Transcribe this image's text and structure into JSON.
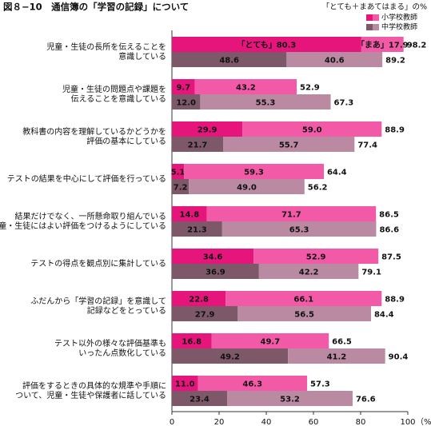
{
  "chart_data": {
    "type": "grouped-stacked-barh",
    "title": "図８−10　通信簿の「学習の記録」について",
    "note": "「とても＋まあてはまる」の%",
    "categories": [
      [
        "児童・生徒の長所を伝えることを",
        "意識している"
      ],
      [
        "児童・生徒の問題点や課題を",
        "伝えることを意識している"
      ],
      [
        "教科書の内容を理解しているかどうかを",
        "評価の基本にしている"
      ],
      [
        "テストの結果を中心にして評価を行っている"
      ],
      [
        "結果だけでなく、一所懸命取り組んでいる",
        "児童・生徒にはよい評価をつけるようにしている"
      ],
      [
        "テストの得点を観点別に集計している"
      ],
      [
        "ふだんから「学習の記録」を意識して",
        "記録などをとっている"
      ],
      [
        "テスト以外の様々な評価基準も",
        "いったん点数化している"
      ],
      [
        "評価をするときの具体的な規準や手順に",
        "ついて、児童・生徒や保護者に話している"
      ]
    ],
    "groups": [
      {
        "name": "小学校教師",
        "colors": [
          "#e5157c",
          "#f25aa8"
        ],
        "segments": [
          {
            "values": [
              80.3,
              9.7,
              29.9,
              5.1,
              14.8,
              34.6,
              22.8,
              16.8,
              11.0
            ],
            "value_labels": [
              "「とても」80.3",
              "9.7",
              "29.9",
              "5.1",
              "14.8",
              "34.6",
              "22.8",
              "16.8",
              "11.0"
            ]
          },
          {
            "values": [
              17.9,
              43.2,
              59.0,
              59.3,
              71.7,
              52.9,
              66.1,
              49.7,
              46.3
            ],
            "value_labels": [
              "「まあ」17.9",
              "43.2",
              "59.0",
              "59.3",
              "71.7",
              "52.9",
              "66.1",
              "49.7",
              "46.3"
            ]
          }
        ],
        "totals": [
          98.2,
          52.9,
          88.9,
          64.4,
          86.5,
          87.5,
          88.9,
          66.5,
          57.3
        ]
      },
      {
        "name": "中学校教師",
        "colors": [
          "#7c5868",
          "#b98aa2"
        ],
        "segments": [
          {
            "values": [
              48.6,
              12.0,
              21.7,
              7.2,
              21.3,
              36.9,
              27.9,
              49.2,
              23.4
            ],
            "value_labels": [
              "48.6",
              "12.0",
              "21.7",
              "7.2",
              "21.3",
              "36.9",
              "27.9",
              "49.2",
              "23.4"
            ]
          },
          {
            "values": [
              40.6,
              55.3,
              55.7,
              49.0,
              65.3,
              42.2,
              56.5,
              41.2,
              53.2
            ],
            "value_labels": [
              "40.6",
              "55.3",
              "55.7",
              "49.0",
              "65.3",
              "42.2",
              "56.5",
              "41.2",
              "53.2"
            ]
          }
        ],
        "totals": [
          89.2,
          67.3,
          77.4,
          56.2,
          86.6,
          79.1,
          84.4,
          90.4,
          76.6
        ]
      }
    ],
    "xlim": [
      0,
      100
    ],
    "xticks": [
      0,
      20,
      40,
      60,
      80,
      100
    ],
    "x_unit": "（%）"
  }
}
